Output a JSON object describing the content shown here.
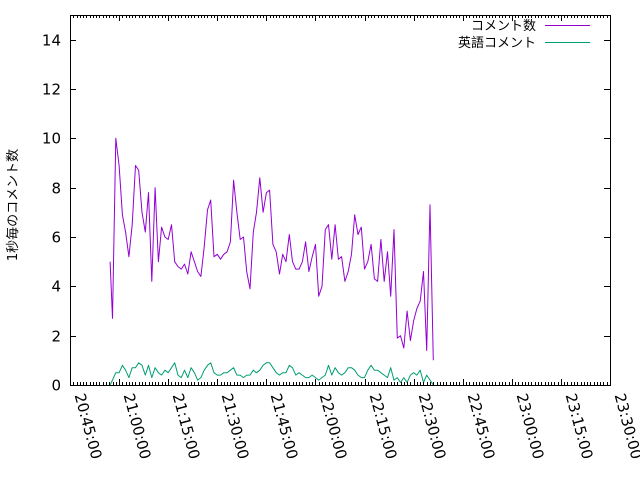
{
  "chart_data": {
    "type": "line",
    "title": "",
    "xlabel": "",
    "ylabel": "1秒毎のコメント数",
    "xlim": [
      "20:45:00",
      "23:30:00"
    ],
    "ylim": [
      0,
      15
    ],
    "x_tick_labels": [
      "20:45:00",
      "21:00:00",
      "21:15:00",
      "21:30:00",
      "21:45:00",
      "22:00:00",
      "22:15:00",
      "22:30:00",
      "22:45:00",
      "23:00:00",
      "23:15:00",
      "23:30:00"
    ],
    "y_tick_labels": [
      "0",
      "2",
      "4",
      "6",
      "8",
      "10",
      "12",
      "14"
    ],
    "y_ticks": [
      0,
      2,
      4,
      6,
      8,
      10,
      12,
      14
    ],
    "grid": false,
    "legend_position": "top-right",
    "series": [
      {
        "name": "コメント数",
        "color": "#9400d3",
        "points": [
          [
            "20:57:15",
            5.0
          ],
          [
            "20:58:00",
            2.7
          ],
          [
            "20:59:00",
            10.0
          ],
          [
            "21:00:00",
            8.9
          ],
          [
            "21:01:00",
            6.9
          ],
          [
            "21:02:00",
            6.2
          ],
          [
            "21:03:00",
            5.2
          ],
          [
            "21:04:00",
            6.5
          ],
          [
            "21:05:00",
            8.9
          ],
          [
            "21:06:00",
            8.7
          ],
          [
            "21:07:00",
            7.0
          ],
          [
            "21:08:00",
            6.2
          ],
          [
            "21:09:00",
            7.8
          ],
          [
            "21:10:00",
            4.2
          ],
          [
            "21:11:00",
            8.0
          ],
          [
            "21:12:00",
            5.0
          ],
          [
            "21:13:00",
            6.4
          ],
          [
            "21:14:00",
            6.0
          ],
          [
            "21:15:00",
            5.9
          ],
          [
            "21:16:00",
            6.5
          ],
          [
            "21:17:00",
            5.0
          ],
          [
            "21:18:00",
            4.8
          ],
          [
            "21:19:00",
            4.7
          ],
          [
            "21:20:00",
            4.9
          ],
          [
            "21:21:00",
            4.5
          ],
          [
            "21:22:00",
            5.4
          ],
          [
            "21:23:00",
            5.0
          ],
          [
            "21:24:00",
            4.6
          ],
          [
            "21:25:00",
            4.4
          ],
          [
            "21:26:00",
            5.6
          ],
          [
            "21:27:00",
            7.1
          ],
          [
            "21:28:00",
            7.5
          ],
          [
            "21:29:00",
            5.2
          ],
          [
            "21:30:00",
            5.3
          ],
          [
            "21:31:00",
            5.1
          ],
          [
            "21:32:00",
            5.3
          ],
          [
            "21:33:00",
            5.4
          ],
          [
            "21:34:00",
            5.8
          ],
          [
            "21:35:00",
            8.3
          ],
          [
            "21:36:00",
            7.0
          ],
          [
            "21:37:00",
            5.9
          ],
          [
            "21:38:00",
            6.0
          ],
          [
            "21:39:00",
            4.6
          ],
          [
            "21:40:00",
            3.9
          ],
          [
            "21:41:00",
            6.2
          ],
          [
            "21:42:00",
            7.0
          ],
          [
            "21:43:00",
            8.4
          ],
          [
            "21:44:00",
            7.0
          ],
          [
            "21:45:00",
            7.8
          ],
          [
            "21:46:00",
            7.9
          ],
          [
            "21:47:00",
            5.7
          ],
          [
            "21:48:00",
            5.4
          ],
          [
            "21:49:00",
            4.5
          ],
          [
            "21:50:00",
            5.3
          ],
          [
            "21:51:00",
            5.0
          ],
          [
            "21:52:00",
            6.1
          ],
          [
            "21:53:00",
            5.0
          ],
          [
            "21:54:00",
            4.7
          ],
          [
            "21:55:00",
            4.7
          ],
          [
            "21:56:00",
            5.0
          ],
          [
            "21:57:00",
            5.8
          ],
          [
            "21:58:00",
            4.6
          ],
          [
            "21:59:00",
            5.2
          ],
          [
            "22:00:00",
            5.7
          ],
          [
            "22:01:00",
            3.6
          ],
          [
            "22:02:00",
            4.0
          ],
          [
            "22:03:00",
            6.3
          ],
          [
            "22:04:00",
            6.5
          ],
          [
            "22:05:00",
            5.1
          ],
          [
            "22:06:00",
            6.5
          ],
          [
            "22:07:00",
            5.1
          ],
          [
            "22:08:00",
            5.2
          ],
          [
            "22:09:00",
            4.2
          ],
          [
            "22:10:00",
            4.6
          ],
          [
            "22:11:00",
            5.3
          ],
          [
            "22:12:00",
            6.9
          ],
          [
            "22:13:00",
            6.1
          ],
          [
            "22:14:00",
            6.4
          ],
          [
            "22:15:00",
            4.7
          ],
          [
            "22:16:00",
            5.0
          ],
          [
            "22:17:00",
            5.7
          ],
          [
            "22:18:00",
            4.3
          ],
          [
            "22:19:00",
            4.2
          ],
          [
            "22:20:00",
            5.9
          ],
          [
            "22:21:00",
            4.2
          ],
          [
            "22:22:00",
            5.4
          ],
          [
            "22:23:00",
            3.6
          ],
          [
            "22:24:00",
            6.3
          ],
          [
            "22:25:00",
            1.9
          ],
          [
            "22:26:00",
            2.0
          ],
          [
            "22:27:00",
            1.5
          ],
          [
            "22:28:00",
            3.0
          ],
          [
            "22:29:00",
            1.8
          ],
          [
            "22:30:00",
            2.6
          ],
          [
            "22:31:00",
            3.1
          ],
          [
            "22:32:00",
            3.4
          ],
          [
            "22:33:00",
            4.6
          ],
          [
            "22:34:00",
            1.4
          ],
          [
            "22:35:00",
            7.3
          ],
          [
            "22:36:00",
            1.0
          ]
        ]
      },
      {
        "name": "英語コメント",
        "color": "#009e73",
        "points": [
          [
            "20:57:15",
            0.0
          ],
          [
            "20:58:00",
            0.2
          ],
          [
            "20:59:00",
            0.5
          ],
          [
            "21:00:00",
            0.5
          ],
          [
            "21:01:00",
            0.8
          ],
          [
            "21:02:00",
            0.6
          ],
          [
            "21:03:00",
            0.3
          ],
          [
            "21:04:00",
            0.7
          ],
          [
            "21:05:00",
            0.7
          ],
          [
            "21:06:00",
            0.9
          ],
          [
            "21:07:00",
            0.8
          ],
          [
            "21:08:00",
            0.4
          ],
          [
            "21:09:00",
            0.8
          ],
          [
            "21:10:00",
            0.3
          ],
          [
            "21:11:00",
            0.7
          ],
          [
            "21:12:00",
            0.5
          ],
          [
            "21:13:00",
            0.4
          ],
          [
            "21:14:00",
            0.6
          ],
          [
            "21:15:00",
            0.5
          ],
          [
            "21:16:00",
            0.7
          ],
          [
            "21:17:00",
            0.9
          ],
          [
            "21:18:00",
            0.4
          ],
          [
            "21:19:00",
            0.3
          ],
          [
            "21:20:00",
            0.6
          ],
          [
            "21:21:00",
            0.3
          ],
          [
            "21:22:00",
            0.7
          ],
          [
            "21:23:00",
            0.5
          ],
          [
            "21:24:00",
            0.2
          ],
          [
            "21:25:00",
            0.3
          ],
          [
            "21:26:00",
            0.6
          ],
          [
            "21:27:00",
            0.8
          ],
          [
            "21:28:00",
            0.9
          ],
          [
            "21:29:00",
            0.5
          ],
          [
            "21:30:00",
            0.4
          ],
          [
            "21:31:00",
            0.4
          ],
          [
            "21:32:00",
            0.5
          ],
          [
            "21:33:00",
            0.5
          ],
          [
            "21:34:00",
            0.6
          ],
          [
            "21:35:00",
            0.7
          ],
          [
            "21:36:00",
            0.4
          ],
          [
            "21:37:00",
            0.4
          ],
          [
            "21:38:00",
            0.3
          ],
          [
            "21:39:00",
            0.4
          ],
          [
            "21:40:00",
            0.4
          ],
          [
            "21:41:00",
            0.6
          ],
          [
            "21:42:00",
            0.5
          ],
          [
            "21:43:00",
            0.6
          ],
          [
            "21:44:00",
            0.8
          ],
          [
            "21:45:00",
            0.9
          ],
          [
            "21:46:00",
            0.9
          ],
          [
            "21:47:00",
            0.7
          ],
          [
            "21:48:00",
            0.5
          ],
          [
            "21:49:00",
            0.4
          ],
          [
            "21:50:00",
            0.5
          ],
          [
            "21:51:00",
            0.5
          ],
          [
            "21:52:00",
            0.8
          ],
          [
            "21:53:00",
            0.7
          ],
          [
            "21:54:00",
            0.4
          ],
          [
            "21:55:00",
            0.5
          ],
          [
            "21:56:00",
            0.4
          ],
          [
            "21:57:00",
            0.3
          ],
          [
            "21:58:00",
            0.3
          ],
          [
            "21:59:00",
            0.4
          ],
          [
            "22:00:00",
            0.3
          ],
          [
            "22:01:00",
            0.2
          ],
          [
            "22:02:00",
            0.3
          ],
          [
            "22:03:00",
            0.4
          ],
          [
            "22:04:00",
            0.8
          ],
          [
            "22:05:00",
            0.4
          ],
          [
            "22:06:00",
            0.7
          ],
          [
            "22:07:00",
            0.5
          ],
          [
            "22:08:00",
            0.4
          ],
          [
            "22:09:00",
            0.5
          ],
          [
            "22:10:00",
            0.7
          ],
          [
            "22:11:00",
            0.7
          ],
          [
            "22:12:00",
            0.6
          ],
          [
            "22:13:00",
            0.4
          ],
          [
            "22:14:00",
            0.3
          ],
          [
            "22:15:00",
            0.3
          ],
          [
            "22:16:00",
            0.6
          ],
          [
            "22:17:00",
            0.8
          ],
          [
            "22:18:00",
            0.6
          ],
          [
            "22:19:00",
            0.6
          ],
          [
            "22:20:00",
            0.5
          ],
          [
            "22:21:00",
            0.4
          ],
          [
            "22:22:00",
            0.3
          ],
          [
            "22:23:00",
            0.7
          ],
          [
            "22:24:00",
            0.2
          ],
          [
            "22:25:00",
            0.3
          ],
          [
            "22:26:00",
            0.1
          ],
          [
            "22:27:00",
            0.3
          ],
          [
            "22:28:00",
            0.1
          ],
          [
            "22:29:00",
            0.4
          ],
          [
            "22:30:00",
            0.5
          ],
          [
            "22:31:00",
            0.4
          ],
          [
            "22:32:00",
            0.6
          ],
          [
            "22:33:00",
            0.1
          ],
          [
            "22:34:00",
            0.4
          ],
          [
            "22:35:00",
            0.2
          ],
          [
            "22:36:00",
            0.0
          ]
        ]
      }
    ]
  }
}
